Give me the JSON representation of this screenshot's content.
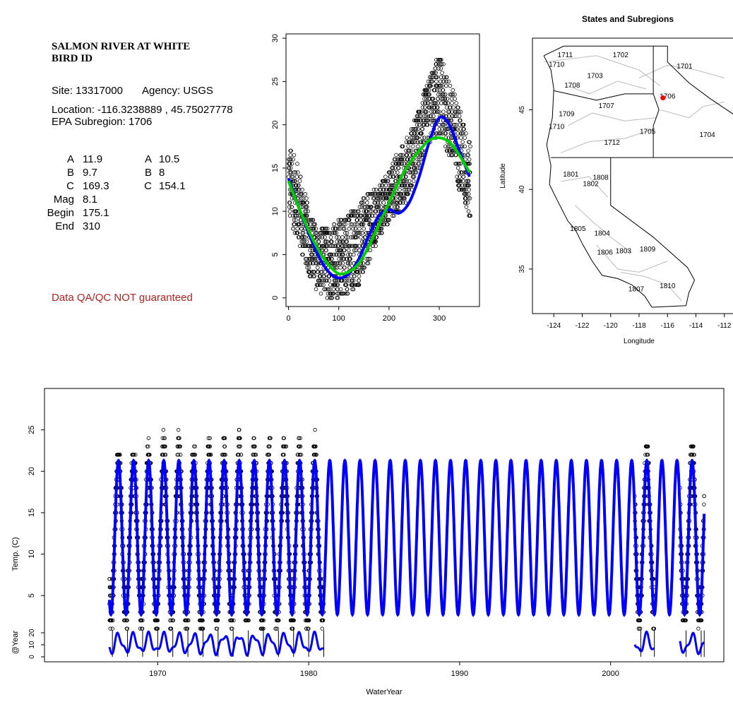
{
  "info": {
    "title_line1": "SALMON RIVER AT WHITE",
    "title_line2": "BIRD ID",
    "site": "Site: 13317000",
    "agency": "Agency: USGS",
    "location": "Location: -116.3238889 , 45.75027778",
    "subregion": "EPA Subregion: 1706",
    "coef_left": [
      {
        "label": "A",
        "value": "11.9"
      },
      {
        "label": "B",
        "value": "9.7"
      },
      {
        "label": "C",
        "value": "169.3"
      },
      {
        "label": "Mag",
        "value": "8.1"
      },
      {
        "label": "Begin",
        "value": "175.1"
      },
      {
        "label": "End",
        "value": "310"
      }
    ],
    "coef_right": [
      {
        "label": "A",
        "value": "10.5"
      },
      {
        "label": "B",
        "value": "8"
      },
      {
        "label": "C",
        "value": "154.1"
      }
    ],
    "qa_note": "Data QA/QC NOT guaranteed"
  },
  "colors": {
    "fit_blue": "#0000ff",
    "fit_green": "#00cc00",
    "site_marker": "#ff0000",
    "qa_text": "#b22222",
    "boundaries": "#000000",
    "subregion_lines": "#bbbbbb"
  },
  "chart_data": [
    {
      "type": "scatter",
      "title": "",
      "xlabel": "",
      "ylabel": "",
      "xlim": [
        -5,
        380
      ],
      "ylim": [
        -1,
        30.5
      ],
      "xticks": [
        0,
        100,
        200,
        300
      ],
      "yticks": [
        0,
        5,
        10,
        15,
        20,
        25,
        30
      ],
      "points_description_free": true,
      "scatter_envelope": {
        "x": [
          0,
          20,
          40,
          60,
          80,
          100,
          120,
          140,
          160,
          180,
          200,
          220,
          240,
          260,
          280,
          300,
          320,
          340,
          360
        ],
        "y_low": [
          9,
          6,
          2.5,
          0.5,
          0,
          0,
          0.5,
          1.5,
          4,
          7,
          9,
          10,
          12,
          15,
          18,
          19,
          16,
          12,
          9
        ],
        "y_high": [
          18,
          15,
          10,
          8,
          8.5,
          9,
          10,
          11,
          12,
          13,
          15,
          17,
          19,
          22,
          26,
          28,
          25,
          22,
          18
        ]
      },
      "series": [
        {
          "color": "blue",
          "x": [
            0,
            20,
            40,
            60,
            80,
            100,
            120,
            140,
            160,
            180,
            200,
            220,
            240,
            260,
            280,
            300,
            320,
            340,
            360
          ],
          "y": [
            13.8,
            10.5,
            7.5,
            4.8,
            3.0,
            2.3,
            2.8,
            4.5,
            7.2,
            9.5,
            10.2,
            9.8,
            11.0,
            14.0,
            18.0,
            20.8,
            20.0,
            17.0,
            14.0
          ]
        },
        {
          "color": "green",
          "x": [
            0,
            20,
            40,
            60,
            80,
            100,
            120,
            140,
            160,
            180,
            200,
            220,
            240,
            260,
            280,
            300,
            320,
            340,
            360
          ],
          "y": [
            13.5,
            10.5,
            7.8,
            5.5,
            3.8,
            2.8,
            3.0,
            4.0,
            6.0,
            8.5,
            11.0,
            13.5,
            15.5,
            17.0,
            18.2,
            18.5,
            18.0,
            16.5,
            14.5
          ]
        }
      ]
    },
    {
      "type": "map",
      "title": "States and Subregions",
      "xlabel": "Longitude",
      "ylabel": "Latitude",
      "xlim": [
        -125.5,
        -110.5
      ],
      "ylim": [
        32.2,
        49.5
      ],
      "xticks": [
        -124,
        -122,
        -120,
        -118,
        -116,
        -114,
        -112
      ],
      "yticks": [
        35,
        40,
        45
      ],
      "site": {
        "lon": -116.32,
        "lat": 45.75
      },
      "region_labels": [
        {
          "text": "1711",
          "lon": -123.2,
          "lat": 48.3
        },
        {
          "text": "1710",
          "lon": -123.8,
          "lat": 47.7
        },
        {
          "text": "1702",
          "lon": -119.3,
          "lat": 48.3
        },
        {
          "text": "1701",
          "lon": -114.8,
          "lat": 47.6
        },
        {
          "text": "1703",
          "lon": -121.1,
          "lat": 47.0
        },
        {
          "text": "1708",
          "lon": -122.7,
          "lat": 46.4
        },
        {
          "text": "1706",
          "lon": -116.0,
          "lat": 45.7
        },
        {
          "text": "1707",
          "lon": -120.3,
          "lat": 45.1
        },
        {
          "text": "1709",
          "lon": -123.1,
          "lat": 44.6
        },
        {
          "text": "1710",
          "lon": -123.8,
          "lat": 43.8
        },
        {
          "text": "1705",
          "lon": -117.4,
          "lat": 43.5
        },
        {
          "text": "1704",
          "lon": -113.2,
          "lat": 43.3
        },
        {
          "text": "1712",
          "lon": -119.9,
          "lat": 42.8
        },
        {
          "text": "1801",
          "lon": -122.8,
          "lat": 40.8
        },
        {
          "text": "1808",
          "lon": -120.7,
          "lat": 40.6
        },
        {
          "text": "1802",
          "lon": -121.4,
          "lat": 40.2
        },
        {
          "text": "1805",
          "lon": -122.3,
          "lat": 37.4
        },
        {
          "text": "1804",
          "lon": -120.6,
          "lat": 37.1
        },
        {
          "text": "1806",
          "lon": -120.4,
          "lat": 35.9
        },
        {
          "text": "1803",
          "lon": -119.1,
          "lat": 36.0
        },
        {
          "text": "1809",
          "lon": -117.4,
          "lat": 36.1
        },
        {
          "text": "1807",
          "lon": -118.2,
          "lat": 33.6
        },
        {
          "text": "1810",
          "lon": -116.0,
          "lat": 33.8
        }
      ]
    },
    {
      "type": "line",
      "title": "",
      "xlabel": "WaterYear",
      "ylabel": "Temp. (C)",
      "ylabel_lower": "@Year",
      "xlim": [
        1962.5,
        2007.5
      ],
      "ylim": [
        -3,
        30
      ],
      "xticks": [
        1970,
        1980,
        1990,
        2000
      ],
      "yticks": [
        5,
        10,
        15,
        20,
        25
      ],
      "yticks_lower": [
        0,
        10,
        20
      ],
      "fit_amplitude": 9.3,
      "fit_mean": 12.0,
      "fit_start": 1966.8,
      "fit_end": 2006.2,
      "observed_periods": [
        {
          "start": 1966.8,
          "end": 1981.0
        },
        {
          "start": 2001.6,
          "end": 2002.9
        },
        {
          "start": 2004.6,
          "end": 2006.2
        }
      ],
      "yearly_peaks": [
        {
          "year": 1967,
          "high": 22.5
        },
        {
          "year": 1968,
          "high": 22
        },
        {
          "year": 1969,
          "high": 24
        },
        {
          "year": 1970,
          "high": 25
        },
        {
          "year": 1971,
          "high": 25
        },
        {
          "year": 1972,
          "high": 23
        },
        {
          "year": 1973,
          "high": 24
        },
        {
          "year": 1974,
          "high": 26
        },
        {
          "year": 1975,
          "high": 25
        },
        {
          "year": 1976,
          "high": 25
        },
        {
          "year": 1977,
          "high": 26
        },
        {
          "year": 1978,
          "high": 28
        },
        {
          "year": 1979,
          "high": 25
        },
        {
          "year": 1980,
          "high": 27
        },
        {
          "year": 1981,
          "high": 25
        },
        {
          "year": 2002,
          "high": 23.5
        },
        {
          "year": 2003,
          "high": 23
        },
        {
          "year": 2005,
          "high": 23
        },
        {
          "year": 2006,
          "high": 23
        }
      ]
    }
  ]
}
